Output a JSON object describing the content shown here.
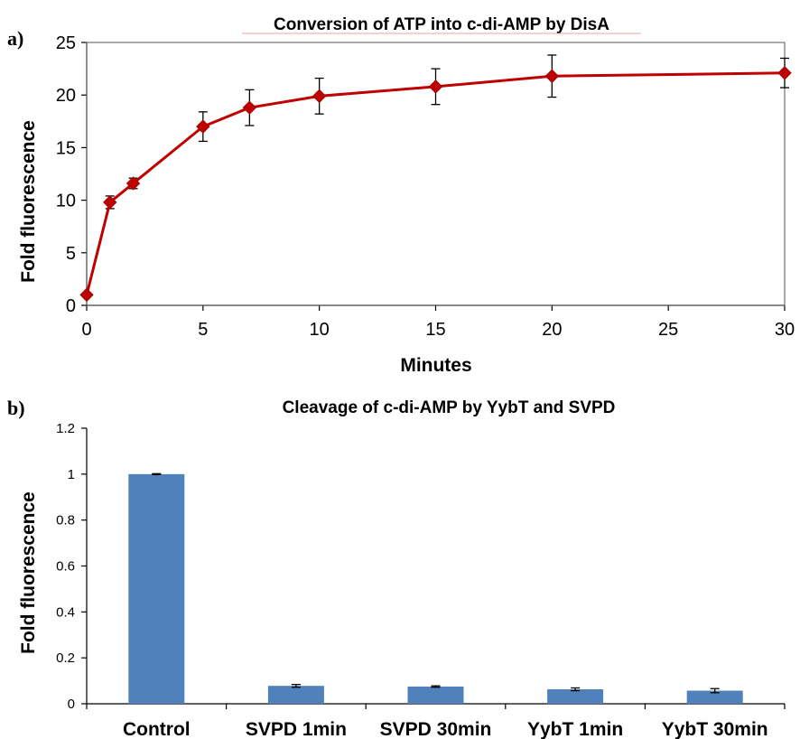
{
  "panels": {
    "a_label": "a)",
    "b_label": "b)"
  },
  "chart_data": [
    {
      "type": "line",
      "title": "Conversion of ATP into c-di-AMP by DisA",
      "xlabel": "Minutes",
      "ylabel": "Fold fluorescence",
      "xlim": [
        0,
        30
      ],
      "ylim": [
        0,
        25
      ],
      "xticks": [
        0,
        5,
        10,
        15,
        20,
        25,
        30
      ],
      "yticks": [
        0,
        5,
        10,
        15,
        20,
        25
      ],
      "x": [
        0,
        1,
        2,
        5,
        7,
        10,
        15,
        20,
        30
      ],
      "y": [
        1.0,
        9.8,
        11.6,
        17.0,
        18.8,
        19.9,
        20.8,
        21.8,
        22.1
      ],
      "error": [
        0.0,
        0.6,
        0.5,
        1.4,
        1.7,
        1.7,
        1.7,
        2.0,
        1.4
      ],
      "marker": "diamond",
      "color": "#c00000",
      "grid": false,
      "legend": "none"
    },
    {
      "type": "bar",
      "title": "Cleavage of c-di-AMP by YybT and SVPD",
      "xlabel": "",
      "ylabel": "Fold fluorescence",
      "ylim": [
        0,
        1.2
      ],
      "yticks": [
        0,
        0.2,
        0.4,
        0.6,
        0.8,
        1,
        1.2
      ],
      "categories": [
        "Control",
        "SVPD 1min",
        "SVPD 30min",
        "YybT 1min",
        "YybT 30min"
      ],
      "values": [
        1.0,
        0.078,
        0.075,
        0.063,
        0.057
      ],
      "error": [
        0.002,
        0.006,
        0.003,
        0.006,
        0.009
      ],
      "color": "#4f81bd",
      "grid": false,
      "legend": "none"
    }
  ]
}
